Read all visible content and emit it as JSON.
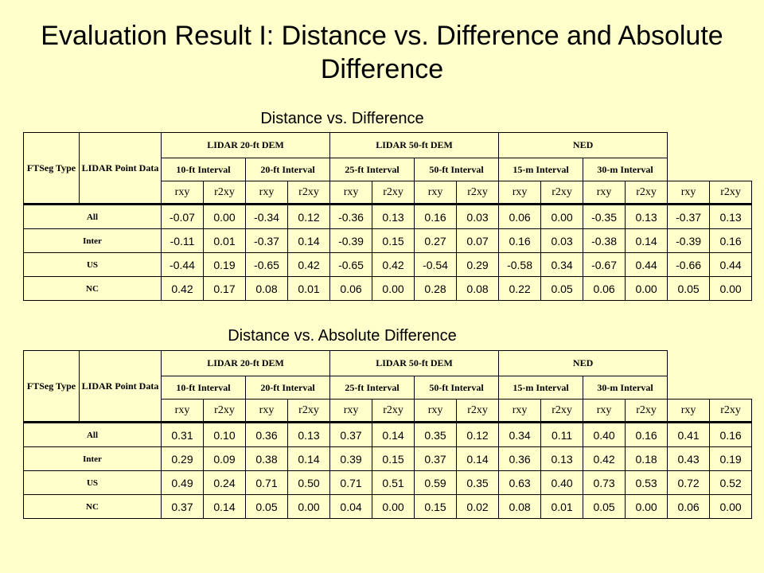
{
  "slide": {
    "title": "Evaluation Result I: Distance vs. Difference and Absolute Difference"
  },
  "tables": [
    {
      "heading": "Distance vs. Difference",
      "header": {
        "type": "FTSeg Type",
        "source": "LIDAR Point Data",
        "groups": [
          "LIDAR 20-ft DEM",
          "LIDAR 50-ft DEM",
          "NED"
        ],
        "intervals": [
          "10-ft Interval",
          "20-ft Interval",
          "25-ft Interval",
          "50-ft Interval",
          "15-m Interval",
          "30-m Interval"
        ],
        "stats": [
          "rxy",
          "r2xy",
          "rxy",
          "r2xy",
          "rxy",
          "r2xy",
          "rxy",
          "r2xy",
          "rxy",
          "r2xy",
          "rxy",
          "r2xy",
          "rxy",
          "r2xy"
        ]
      },
      "rows": [
        {
          "label": "All",
          "values": [
            "-0.07",
            "0.00",
            "-0.34",
            "0.12",
            "-0.36",
            "0.13",
            "0.16",
            "0.03",
            "0.06",
            "0.00",
            "-0.35",
            "0.13",
            "-0.37",
            "0.13"
          ]
        },
        {
          "label": "Inter",
          "values": [
            "-0.11",
            "0.01",
            "-0.37",
            "0.14",
            "-0.39",
            "0.15",
            "0.27",
            "0.07",
            "0.16",
            "0.03",
            "-0.38",
            "0.14",
            "-0.39",
            "0.16"
          ]
        },
        {
          "label": "US",
          "values": [
            "-0.44",
            "0.19",
            "-0.65",
            "0.42",
            "-0.65",
            "0.42",
            "-0.54",
            "0.29",
            "-0.58",
            "0.34",
            "-0.67",
            "0.44",
            "-0.66",
            "0.44"
          ]
        },
        {
          "label": "NC",
          "values": [
            "0.42",
            "0.17",
            "0.08",
            "0.01",
            "0.06",
            "0.00",
            "0.28",
            "0.08",
            "0.22",
            "0.05",
            "0.06",
            "0.00",
            "0.05",
            "0.00"
          ]
        }
      ]
    },
    {
      "heading": "Distance vs. Absolute Difference",
      "header": {
        "type": "FTSeg Type",
        "source": "LIDAR Point Data",
        "groups": [
          "LIDAR 20-ft DEM",
          "LIDAR 50-ft DEM",
          "NED"
        ],
        "intervals": [
          "10-ft Interval",
          "20-ft Interval",
          "25-ft Interval",
          "50-ft Interval",
          "15-m Interval",
          "30-m Interval"
        ],
        "stats": [
          "rxy",
          "r2xy",
          "rxy",
          "r2xy",
          "rxy",
          "r2xy",
          "rxy",
          "r2xy",
          "rxy",
          "r2xy",
          "rxy",
          "r2xy",
          "rxy",
          "r2xy"
        ]
      },
      "rows": [
        {
          "label": "All",
          "values": [
            "0.31",
            "0.10",
            "0.36",
            "0.13",
            "0.37",
            "0.14",
            "0.35",
            "0.12",
            "0.34",
            "0.11",
            "0.40",
            "0.16",
            "0.41",
            "0.16"
          ]
        },
        {
          "label": "Inter",
          "values": [
            "0.29",
            "0.09",
            "0.38",
            "0.14",
            "0.39",
            "0.15",
            "0.37",
            "0.14",
            "0.36",
            "0.13",
            "0.42",
            "0.18",
            "0.43",
            "0.19"
          ]
        },
        {
          "label": "US",
          "values": [
            "0.49",
            "0.24",
            "0.71",
            "0.50",
            "0.71",
            "0.51",
            "0.59",
            "0.35",
            "0.63",
            "0.40",
            "0.73",
            "0.53",
            "0.72",
            "0.52"
          ]
        },
        {
          "label": "NC",
          "values": [
            "0.37",
            "0.14",
            "0.05",
            "0.00",
            "0.04",
            "0.00",
            "0.15",
            "0.02",
            "0.08",
            "0.01",
            "0.05",
            "0.00",
            "0.06",
            "0.00"
          ]
        }
      ]
    }
  ]
}
